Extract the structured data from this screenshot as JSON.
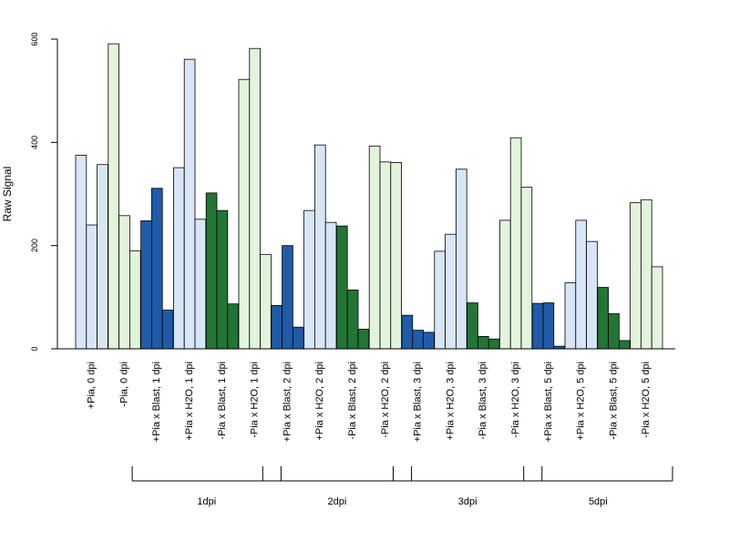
{
  "chart_data": {
    "type": "bar",
    "title": "",
    "xlabel": "",
    "ylabel": "Raw Signal",
    "ylim": [
      0,
      600
    ],
    "yticks": [
      0,
      200,
      400,
      600
    ],
    "grid": false,
    "legend": "none",
    "colors": {
      "light_blue": "#d7e6f7",
      "dark_blue": "#1f5ba8",
      "dark_green": "#227535",
      "light_green": "#e2f4dc"
    },
    "categories": [
      {
        "label": "+Pia, 0 dpi",
        "color": "light_blue",
        "values": [
          375,
          240,
          357
        ]
      },
      {
        "label": "-Pia, 0 dpi",
        "color": "light_green",
        "values": [
          591,
          258,
          190
        ]
      },
      {
        "label": "+Pia x Blast, 1 dpi",
        "color": "dark_blue",
        "values": [
          248,
          311,
          75
        ]
      },
      {
        "label": "+Pia x H2O, 1 dpi",
        "color": "light_blue",
        "values": [
          351,
          561,
          251
        ]
      },
      {
        "label": "-Pia x Blast, 1 dpi",
        "color": "dark_green",
        "values": [
          302,
          268,
          87
        ]
      },
      {
        "label": "-Pia x H2O, 1 dpi",
        "color": "light_green",
        "values": [
          522,
          582,
          183
        ]
      },
      {
        "label": "+Pia x Blast, 2 dpi",
        "color": "dark_blue",
        "values": [
          84,
          200,
          42
        ]
      },
      {
        "label": "+Pia x H2O, 2 dpi",
        "color": "light_blue",
        "values": [
          268,
          395,
          245
        ]
      },
      {
        "label": "-Pia x Blast, 2 dpi",
        "color": "dark_green",
        "values": [
          238,
          114,
          38
        ]
      },
      {
        "label": "-Pia x H2O, 2 dpi",
        "color": "light_green",
        "values": [
          393,
          362,
          361
        ]
      },
      {
        "label": "+Pia x Blast, 3 dpi",
        "color": "dark_blue",
        "values": [
          65,
          36,
          32
        ]
      },
      {
        "label": "+Pia x H2O, 3 dpi",
        "color": "light_blue",
        "values": [
          189,
          222,
          348
        ]
      },
      {
        "label": "-Pia x Blast, 3 dpi",
        "color": "dark_green",
        "values": [
          89,
          24,
          19
        ]
      },
      {
        "label": "-Pia x H2O, 3 dpi",
        "color": "light_green",
        "values": [
          249,
          409,
          313
        ]
      },
      {
        "label": "+Pia x Blast, 5 dpi",
        "color": "dark_blue",
        "values": [
          88,
          89,
          5
        ]
      },
      {
        "label": "+Pia x H2O, 5 dpi",
        "color": "light_blue",
        "values": [
          128,
          249,
          208
        ]
      },
      {
        "label": "-Pia x Blast, 5 dpi",
        "color": "dark_green",
        "values": [
          119,
          68,
          16
        ]
      },
      {
        "label": "-Pia x H2O, 5 dpi",
        "color": "light_green",
        "values": [
          283,
          289,
          159
        ]
      }
    ],
    "groups": [
      {
        "label": "1dpi",
        "from": 2,
        "to": 5
      },
      {
        "label": "2dpi",
        "from": 6,
        "to": 9
      },
      {
        "label": "3dpi",
        "from": 10,
        "to": 13
      },
      {
        "label": "5dpi",
        "from": 14,
        "to": 17
      }
    ]
  }
}
